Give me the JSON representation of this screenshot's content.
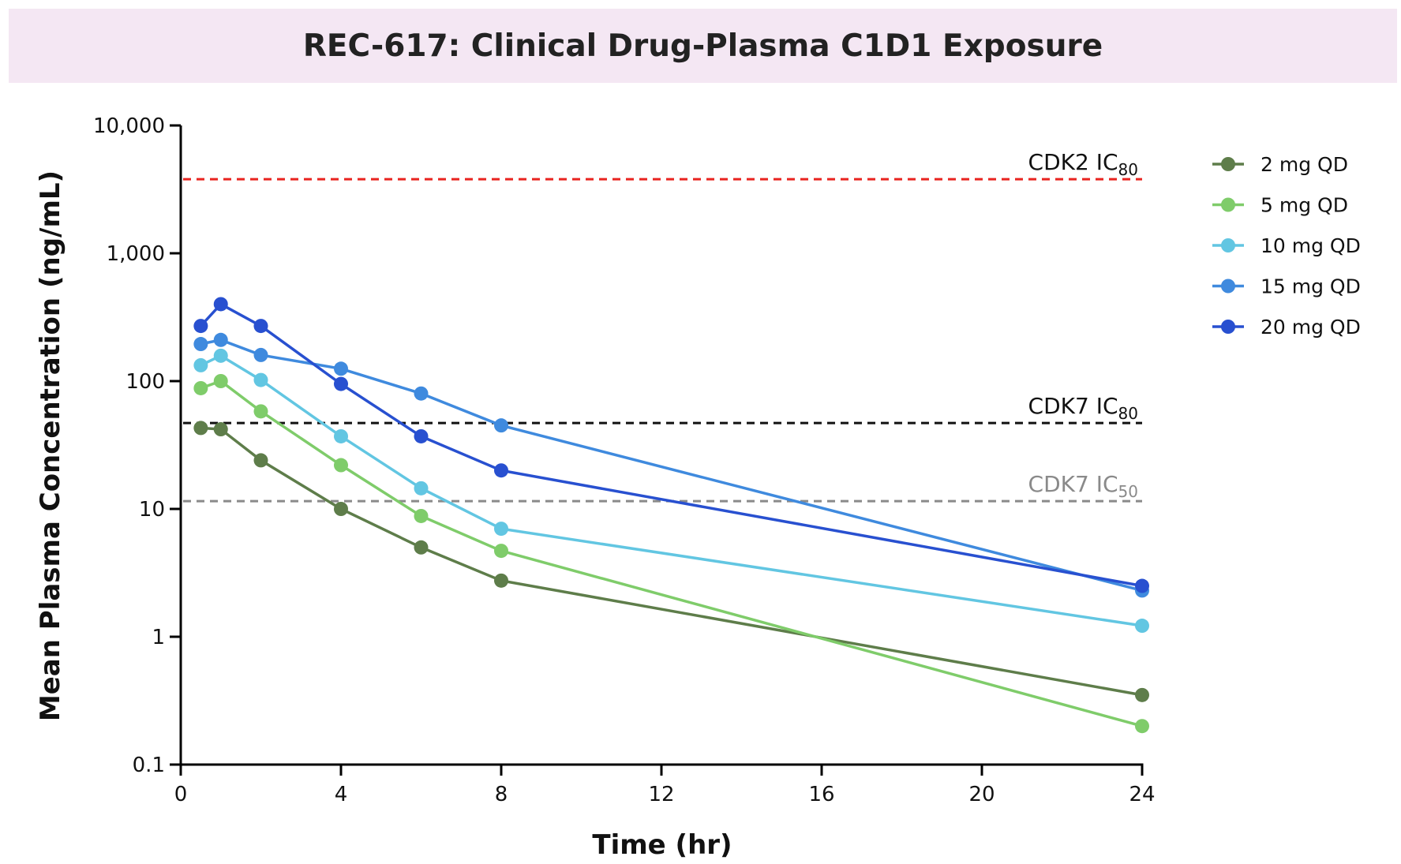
{
  "chart_data": {
    "type": "line",
    "title": "REC-617: Clinical Drug-Plasma C1D1 Exposure",
    "xlabel": "Time (hr)",
    "ylabel": "Mean Plasma Concentration (ng/mL)",
    "xlim": [
      0,
      24
    ],
    "ylim": [
      0.1,
      10000
    ],
    "yscale": "log",
    "xticks": [
      0,
      4,
      8,
      12,
      16,
      20,
      24
    ],
    "xtick_labels": [
      "0",
      "4",
      "8",
      "12",
      "16",
      "20",
      "24"
    ],
    "yticks": [
      0.1,
      1,
      10,
      100,
      1000,
      10000
    ],
    "ytick_labels": [
      "0.1",
      "1",
      "10",
      "100",
      "1,000",
      "10,000"
    ],
    "grid": false,
    "legend_position": "right",
    "x": [
      0.5,
      1,
      2,
      4,
      6,
      8,
      24
    ],
    "series": [
      {
        "name": "2 mg QD",
        "color": "#5e7d4a",
        "values": [
          43,
          42,
          24,
          10,
          5,
          2.75,
          0.35
        ]
      },
      {
        "name": "5 mg QD",
        "color": "#7fcc6a",
        "values": [
          88,
          100,
          58,
          22,
          8.8,
          4.7,
          0.2
        ]
      },
      {
        "name": "10 mg QD",
        "color": "#62c6e2",
        "values": [
          133,
          158,
          102,
          37,
          14.5,
          7,
          1.22
        ]
      },
      {
        "name": "15 mg QD",
        "color": "#3f8ade",
        "values": [
          195,
          210,
          160,
          125,
          80,
          45,
          2.3
        ]
      },
      {
        "name": "20 mg QD",
        "color": "#2850d0",
        "values": [
          270,
          400,
          270,
          95,
          37,
          20,
          2.5
        ]
      }
    ],
    "reference_lines": [
      {
        "label": "CDK2 IC",
        "subscript": "80",
        "value": 3800,
        "color": "#e8231f",
        "style": "dashed"
      },
      {
        "label": "CDK7 IC",
        "subscript": "80",
        "value": 47,
        "color": "#111111",
        "style": "dashed"
      },
      {
        "label": "CDK7 IC",
        "subscript": "50",
        "value": 11.5,
        "color": "#8a8a8a",
        "style": "dashed"
      }
    ]
  }
}
